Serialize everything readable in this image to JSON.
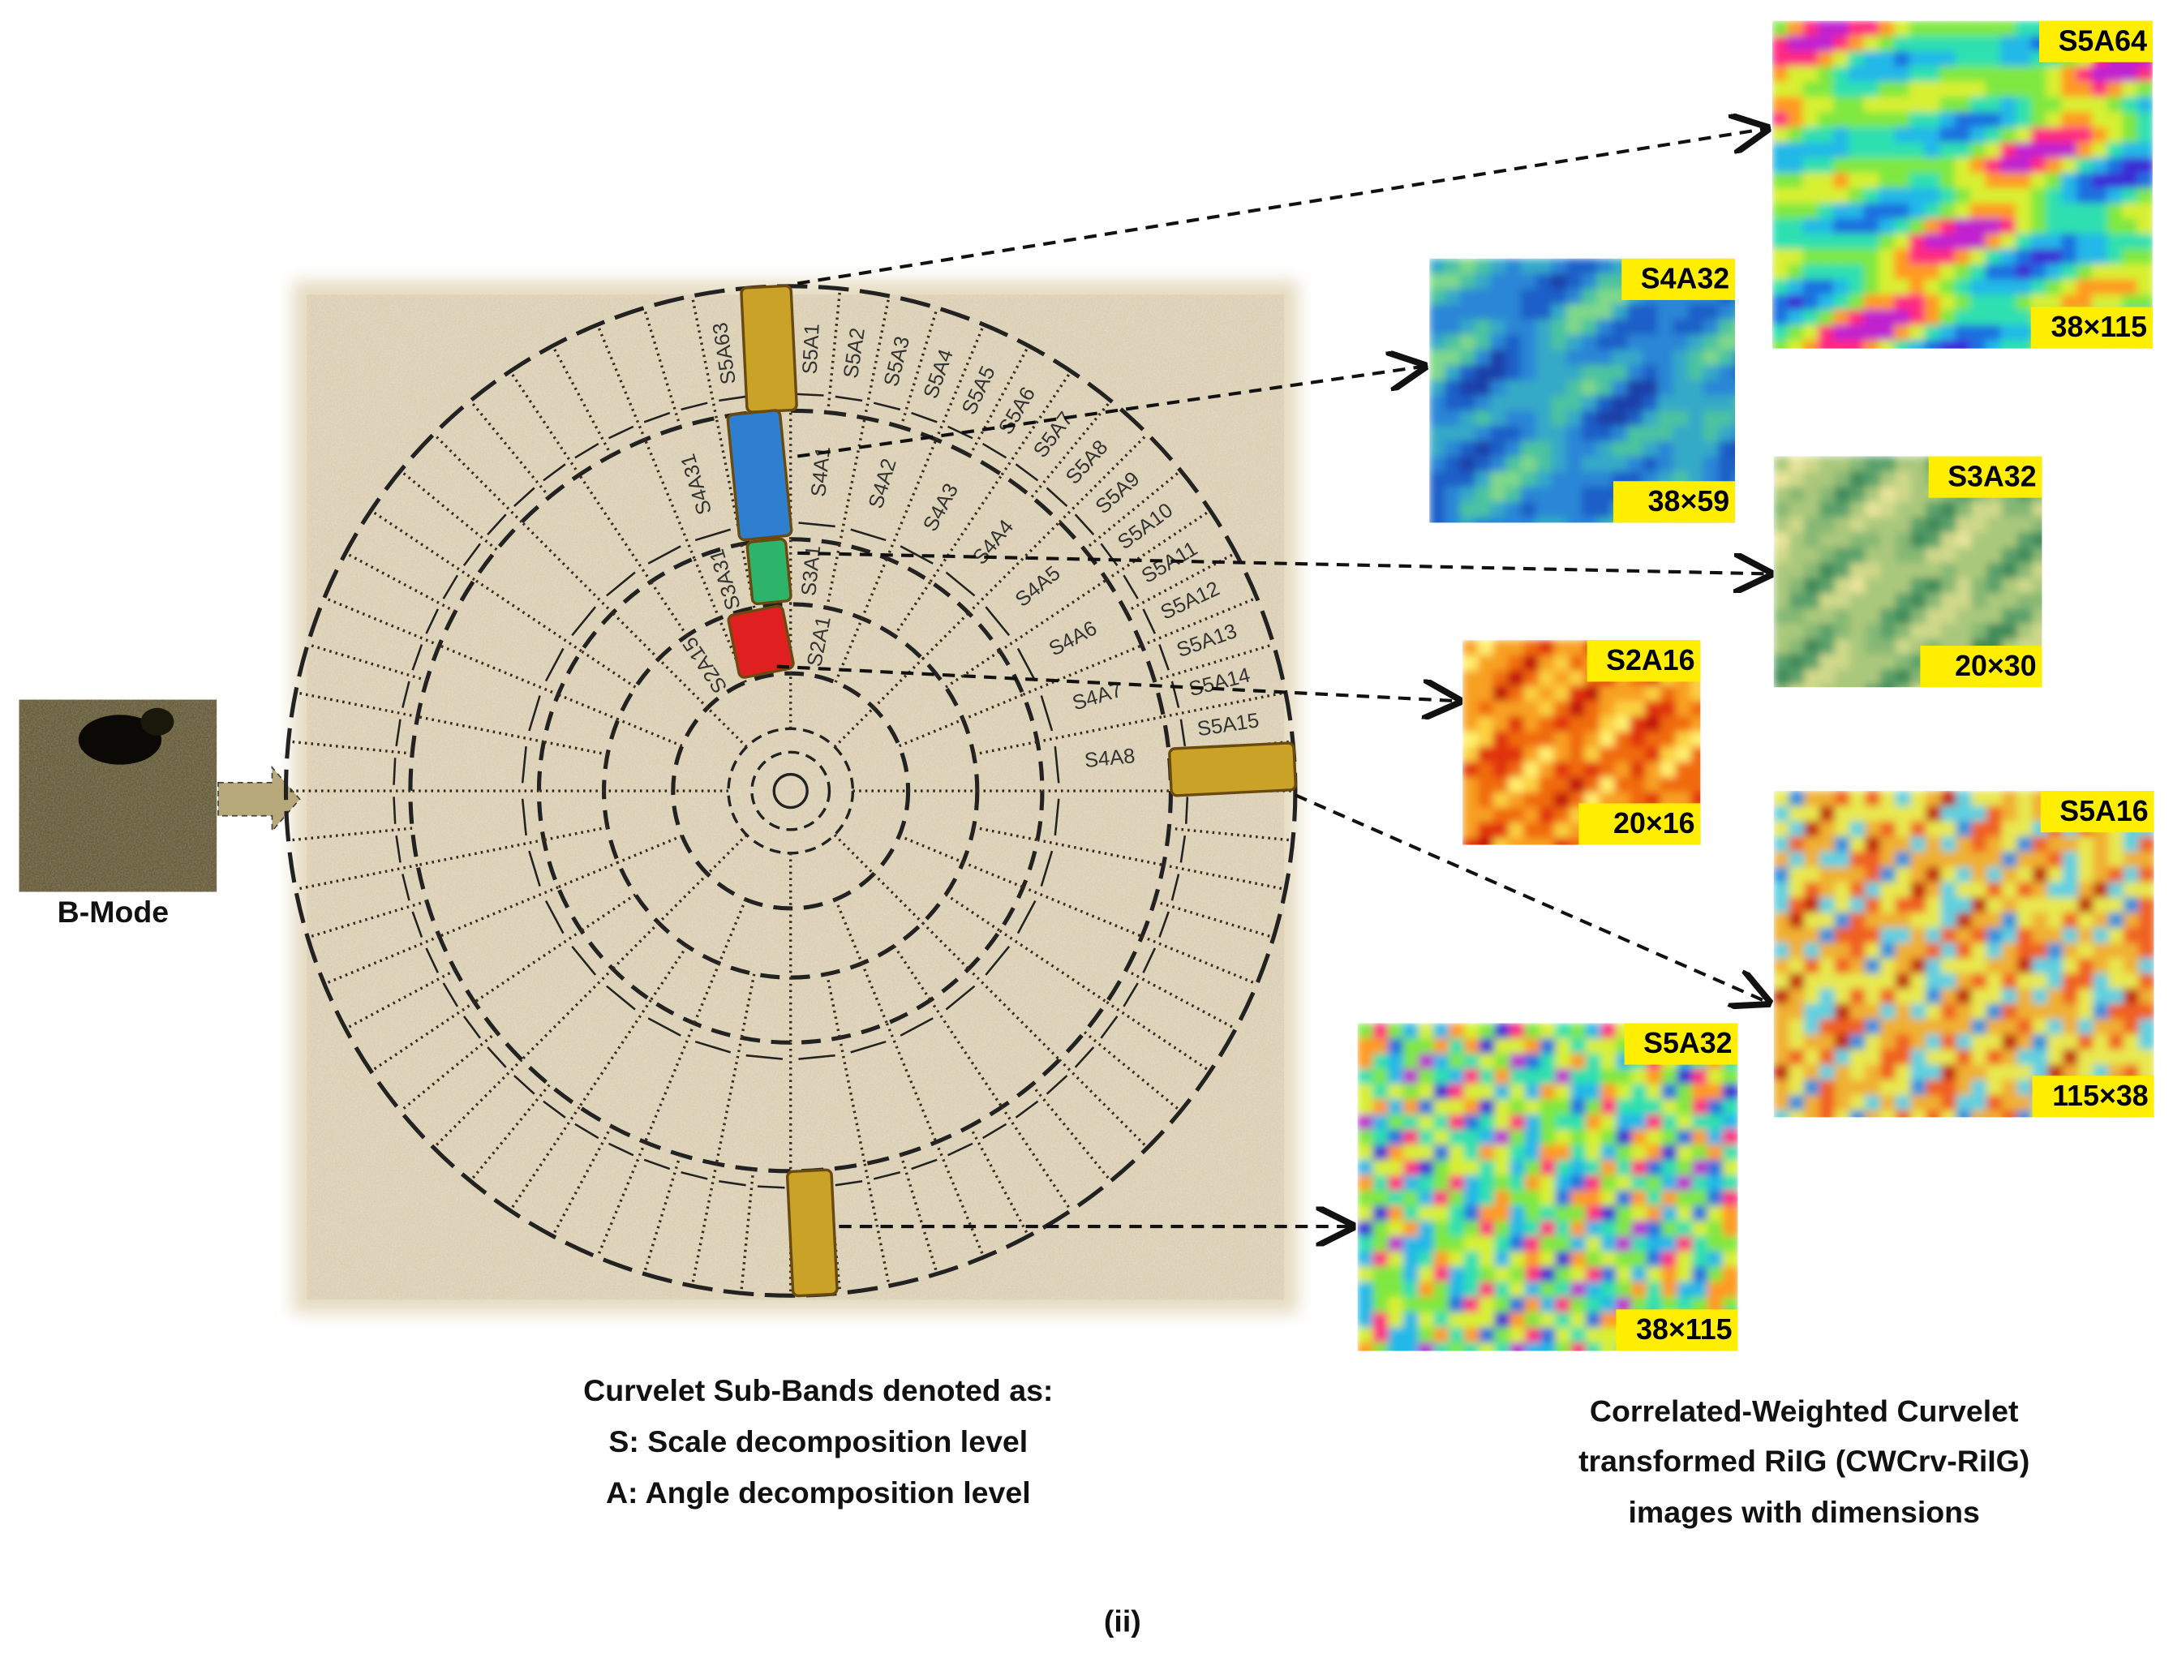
{
  "bmode": {
    "label": "B-Mode"
  },
  "wheel": {
    "scale5": [
      "S5A63",
      "S5A1",
      "S5A2",
      "S5A3",
      "S5A4",
      "S5A5",
      "S5A6",
      "S5A7",
      "S5A8",
      "S5A9",
      "S5A10",
      "S5A11",
      "S5A12",
      "S5A13",
      "S5A14",
      "S5A15"
    ],
    "scale4": [
      "S4A31",
      "S4A1",
      "S4A2",
      "S4A3",
      "S4A4",
      "S4A5",
      "S4A6",
      "S4A7",
      "S4A8"
    ],
    "scale3": [
      "S3A31",
      "S3A1"
    ],
    "scale2": [
      "S2A15",
      "S2A1"
    ]
  },
  "panels": [
    {
      "label": "S5A64",
      "size": "38×115"
    },
    {
      "label": "S4A32",
      "size": "38×59"
    },
    {
      "label": "S3A32",
      "size": "20×30"
    },
    {
      "label": "S2A16",
      "size": "20×16"
    },
    {
      "label": "S5A16",
      "size": "115×38"
    },
    {
      "label": "S5A32",
      "size": "38×115"
    }
  ],
  "captions": {
    "left": [
      "Curvelet Sub-Bands denoted as:",
      "S: Scale decomposition level",
      "A: Angle decomposition level"
    ],
    "right": [
      "Correlated-Weighted Curvelet",
      "transformed RiIG (CWCrv-RiIG)",
      "images with dimensions"
    ],
    "figure": "(ii)"
  }
}
